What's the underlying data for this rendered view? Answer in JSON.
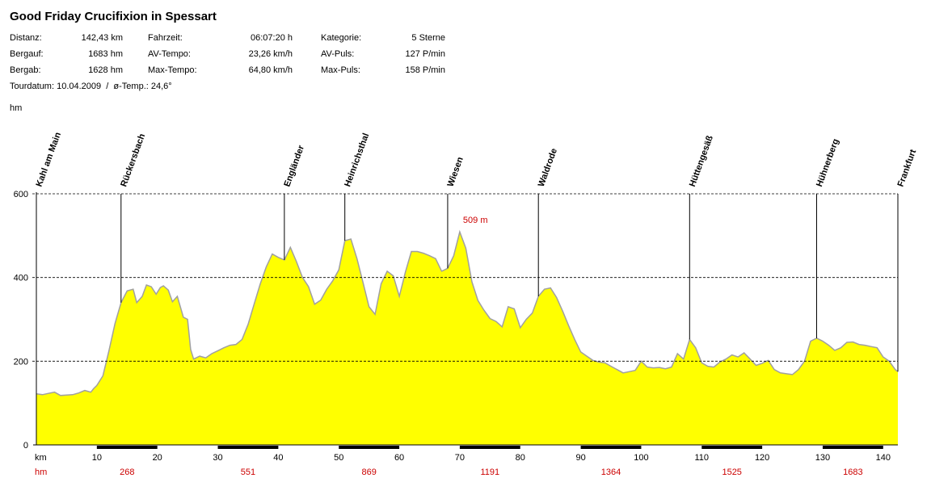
{
  "title": "Good Friday Crucifixion in Spessart",
  "stats": {
    "distanz_label": "Distanz:",
    "distanz_value": "142,43 km",
    "fahrzeit_label": "Fahrzeit:",
    "fahrzeit_value": "06:07:20 h",
    "kategorie_label": "Kategorie:",
    "kategorie_value": "5 Sterne",
    "bergauf_label": "Bergauf:",
    "bergauf_value": "1683 hm",
    "avtempo_label": "AV-Tempo:",
    "avtempo_value": "23,26 km/h",
    "avpuls_label": "AV-Puls:",
    "avpuls_value": "127 P/min",
    "bergab_label": "Bergab:",
    "bergab_value": "1628 hm",
    "maxtempo_label": "Max-Tempo:",
    "maxtempo_value": "64,80 km/h",
    "maxpuls_label": "Max-Puls:",
    "maxpuls_value": "158 P/min",
    "tourdatum": "Tourdatum: 10.04.2009  /  ø-Temp.: 24,6°"
  },
  "colors": {
    "fill": "#ffff00",
    "outline": "#a0a0a0",
    "accent": "#cc0000",
    "axis_bar": "#000000"
  },
  "chart_data": {
    "type": "area",
    "ylabel": "hm",
    "xlabel": "km",
    "xlim": [
      0,
      142.43
    ],
    "ylim": [
      0,
      600
    ],
    "y_ticks": [
      0,
      200,
      400,
      600
    ],
    "x_ticks": [
      10,
      20,
      30,
      40,
      50,
      60,
      70,
      80,
      90,
      100,
      110,
      120,
      130,
      140
    ],
    "grid": "dashed horizontal at 200, 400, 600",
    "cumulative_climb_label": "hm",
    "cumulative_climb": [
      {
        "km": 15,
        "hm": "268"
      },
      {
        "km": 35,
        "hm": "551"
      },
      {
        "km": 55,
        "hm": "869"
      },
      {
        "km": 75,
        "hm": "1191"
      },
      {
        "km": 95,
        "hm": "1364"
      },
      {
        "km": 115,
        "hm": "1525"
      },
      {
        "km": 135,
        "hm": "1683"
      }
    ],
    "peak_annotation": {
      "km": 70,
      "elevation": 509,
      "label": "509 m"
    },
    "waypoints": [
      {
        "name": "Kahl am Main",
        "km": 0
      },
      {
        "name": "Rückersbach",
        "km": 14
      },
      {
        "name": "Engländer",
        "km": 41
      },
      {
        "name": "Heinrichsthal",
        "km": 51
      },
      {
        "name": "Wiesen",
        "km": 68
      },
      {
        "name": "Waldrode",
        "km": 83
      },
      {
        "name": "Hüttengesäß",
        "km": 108
      },
      {
        "name": "Hühnerberg",
        "km": 129
      },
      {
        "name": "Frankfurt",
        "km": 142.43
      }
    ],
    "profile": [
      [
        0,
        122
      ],
      [
        1,
        120
      ],
      [
        2,
        123
      ],
      [
        3,
        126
      ],
      [
        4,
        118
      ],
      [
        5,
        119
      ],
      [
        6,
        120
      ],
      [
        7,
        124
      ],
      [
        8,
        130
      ],
      [
        9,
        126
      ],
      [
        9.5,
        135
      ],
      [
        10,
        142
      ],
      [
        11,
        165
      ],
      [
        12,
        225
      ],
      [
        13,
        290
      ],
      [
        14,
        340
      ],
      [
        15,
        368
      ],
      [
        16,
        372
      ],
      [
        16.6,
        340
      ],
      [
        17.5,
        355
      ],
      [
        18.2,
        382
      ],
      [
        19,
        378
      ],
      [
        19.8,
        360
      ],
      [
        20.5,
        376
      ],
      [
        21,
        380
      ],
      [
        21.8,
        370
      ],
      [
        22.5,
        342
      ],
      [
        23.3,
        355
      ],
      [
        24.3,
        305
      ],
      [
        25,
        300
      ],
      [
        25.5,
        228
      ],
      [
        26,
        205
      ],
      [
        27,
        212
      ],
      [
        28,
        208
      ],
      [
        29,
        218
      ],
      [
        30,
        225
      ],
      [
        31,
        232
      ],
      [
        32,
        238
      ],
      [
        33,
        240
      ],
      [
        34,
        252
      ],
      [
        35,
        288
      ],
      [
        36,
        336
      ],
      [
        37,
        384
      ],
      [
        38,
        425
      ],
      [
        39,
        456
      ],
      [
        40,
        448
      ],
      [
        41,
        442
      ],
      [
        42,
        472
      ],
      [
        43,
        438
      ],
      [
        44,
        400
      ],
      [
        45,
        378
      ],
      [
        46,
        336
      ],
      [
        47,
        346
      ],
      [
        48,
        372
      ],
      [
        49,
        392
      ],
      [
        50,
        418
      ],
      [
        51,
        488
      ],
      [
        52,
        492
      ],
      [
        53,
        445
      ],
      [
        54,
        388
      ],
      [
        55,
        330
      ],
      [
        56,
        312
      ],
      [
        57,
        385
      ],
      [
        58,
        415
      ],
      [
        59,
        404
      ],
      [
        60,
        355
      ],
      [
        61,
        412
      ],
      [
        62,
        462
      ],
      [
        63,
        462
      ],
      [
        64,
        458
      ],
      [
        65,
        452
      ],
      [
        66,
        445
      ],
      [
        67,
        415
      ],
      [
        68,
        422
      ],
      [
        69,
        452
      ],
      [
        70,
        509
      ],
      [
        71,
        470
      ],
      [
        72,
        390
      ],
      [
        73,
        345
      ],
      [
        74,
        322
      ],
      [
        75,
        302
      ],
      [
        76,
        295
      ],
      [
        77,
        282
      ],
      [
        78,
        330
      ],
      [
        79,
        325
      ],
      [
        80,
        280
      ],
      [
        81,
        300
      ],
      [
        82,
        315
      ],
      [
        83,
        355
      ],
      [
        84,
        372
      ],
      [
        85,
        375
      ],
      [
        86,
        352
      ],
      [
        87,
        320
      ],
      [
        88,
        285
      ],
      [
        89,
        252
      ],
      [
        90,
        222
      ],
      [
        91,
        212
      ],
      [
        92,
        202
      ],
      [
        93,
        198
      ],
      [
        94,
        196
      ],
      [
        95,
        188
      ],
      [
        96,
        180
      ],
      [
        97,
        172
      ],
      [
        98,
        175
      ],
      [
        99,
        178
      ],
      [
        100,
        200
      ],
      [
        101,
        186
      ],
      [
        102,
        184
      ],
      [
        103,
        185
      ],
      [
        104,
        182
      ],
      [
        105,
        186
      ],
      [
        106,
        218
      ],
      [
        107,
        205
      ],
      [
        108,
        252
      ],
      [
        109,
        232
      ],
      [
        110,
        196
      ],
      [
        111,
        188
      ],
      [
        112,
        186
      ],
      [
        113,
        198
      ],
      [
        114,
        205
      ],
      [
        115,
        215
      ],
      [
        116,
        210
      ],
      [
        117,
        220
      ],
      [
        118,
        205
      ],
      [
        119,
        190
      ],
      [
        120,
        195
      ],
      [
        121,
        202
      ],
      [
        122,
        180
      ],
      [
        123,
        172
      ],
      [
        124,
        170
      ],
      [
        125,
        168
      ],
      [
        126,
        180
      ],
      [
        127,
        200
      ],
      [
        128,
        248
      ],
      [
        129,
        255
      ],
      [
        130,
        248
      ],
      [
        131,
        238
      ],
      [
        132,
        226
      ],
      [
        133,
        232
      ],
      [
        134,
        245
      ],
      [
        135,
        246
      ],
      [
        136,
        240
      ],
      [
        137,
        238
      ],
      [
        138,
        235
      ],
      [
        139,
        232
      ],
      [
        140,
        210
      ],
      [
        141,
        200
      ],
      [
        142,
        180
      ],
      [
        142.43,
        175
      ]
    ]
  }
}
